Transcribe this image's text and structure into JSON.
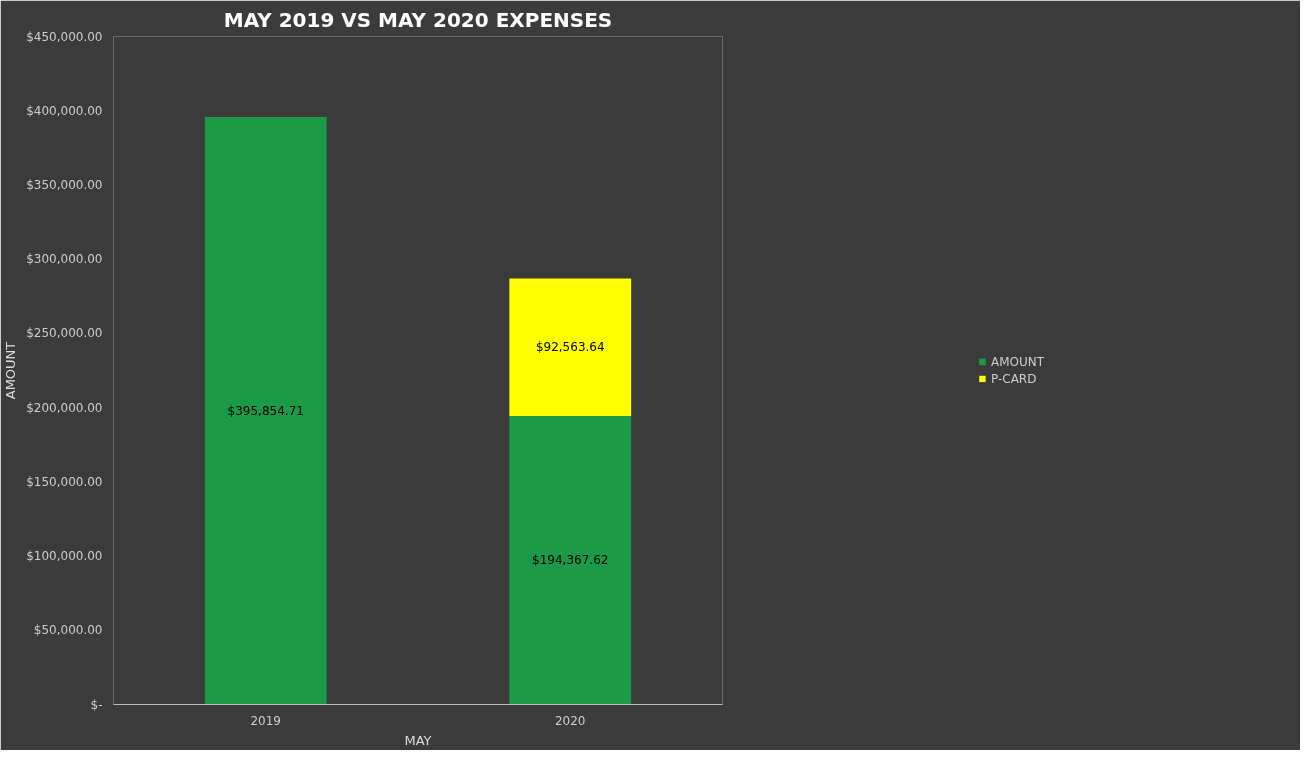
{
  "chart_data": {
    "type": "bar",
    "title": "MAY 2019 VS MAY 2020 EXPENSES",
    "xlabel": "MAY",
    "ylabel": "AMOUNT",
    "categories": [
      "2019",
      "2020"
    ],
    "stacked": true,
    "series": [
      {
        "name": "AMOUNT",
        "color": "#1b9a47",
        "values": [
          395854.71,
          194367.62
        ],
        "value_labels": [
          "$395,854.71",
          "$194,367.62"
        ]
      },
      {
        "name": "P-CARD",
        "color": "#ffff00",
        "values": [
          null,
          92563.64
        ],
        "value_labels": [
          null,
          "$92,563.64"
        ]
      }
    ],
    "ylim": [
      0,
      450000
    ],
    "yticks": [
      {
        "value": 0,
        "label": "$-"
      },
      {
        "value": 50000,
        "label": "$50,000.00"
      },
      {
        "value": 100000,
        "label": "$100,000.00"
      },
      {
        "value": 150000,
        "label": "$150,000.00"
      },
      {
        "value": 200000,
        "label": "$200,000.00"
      },
      {
        "value": 250000,
        "label": "$250,000.00"
      },
      {
        "value": 300000,
        "label": "$300,000.00"
      },
      {
        "value": 350000,
        "label": "$350,000.00"
      },
      {
        "value": 400000,
        "label": "$400,000.00"
      },
      {
        "value": 450000,
        "label": "$450,000.00"
      }
    ],
    "legend": "right",
    "grid": false
  }
}
